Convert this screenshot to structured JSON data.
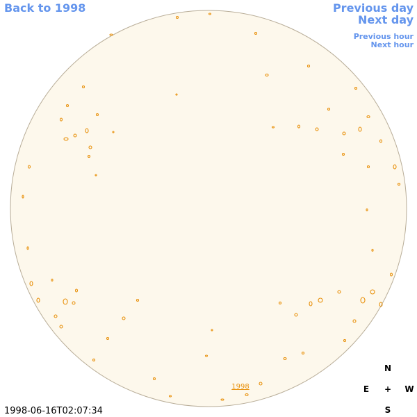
{
  "header": {
    "back": "Back to 1998",
    "previous_day": "Previous day",
    "next_day": "Next day",
    "previous_hour": "Previous hour",
    "next_hour": "Next hour"
  },
  "timestamp": "1998-06-16T02:07:34",
  "disk_label": "1998",
  "compass": {
    "north": "N",
    "east": "E",
    "center": "+",
    "west": "W",
    "south": "S"
  }
}
